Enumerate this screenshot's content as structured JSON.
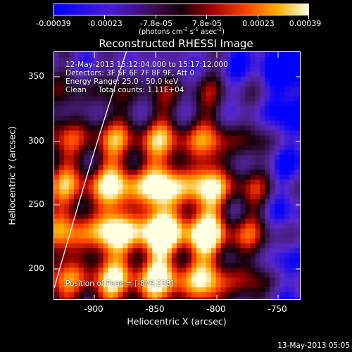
{
  "colorbar": {
    "tick_labels": [
      "-0.00039",
      "-0.00023",
      "-7.8e-05",
      "7.8e-05",
      "0.00023",
      "0.00039"
    ],
    "unit_prefix": "(photons cm",
    "unit_exp1": "-2",
    "unit_mid1": " s",
    "unit_exp2": "-1",
    "unit_mid2": " asec",
    "unit_exp3": "-2",
    "unit_suffix": ")"
  },
  "title": "Reconstructed RHESSI Image",
  "info": {
    "line1": "12-May-2013 15:12:04.000 to 15:17:12.000",
    "line2": "Detectors: 3F 5F 6F 7F 8F 9F, Att 0",
    "line3": "Energy Range: 25.0 - 50.0 keV",
    "line4": "Clean     Total counts: 1.11E+04",
    "peak": "Position of Peak = [-849,238]"
  },
  "axes": {
    "xlabel": "Heliocentric X (arcsec)",
    "ylabel": "Heliocentric Y (arcsec)",
    "xticks": [
      "-900",
      "-850",
      "-800",
      "-750"
    ],
    "yticks": [
      "200",
      "250",
      "300",
      "350"
    ]
  },
  "footer_timestamp": "13-May-2013 05:05",
  "chart_data": {
    "type": "heatmap",
    "title": "Reconstructed RHESSI Image",
    "xlabel": "Heliocentric X (arcsec)",
    "ylabel": "Heliocentric Y (arcsec)",
    "xlim": [
      -935,
      -737
    ],
    "ylim": [
      181,
      373
    ],
    "color_range": [
      -0.00039,
      0.00039
    ],
    "peak": [
      -849,
      238
    ]
  }
}
